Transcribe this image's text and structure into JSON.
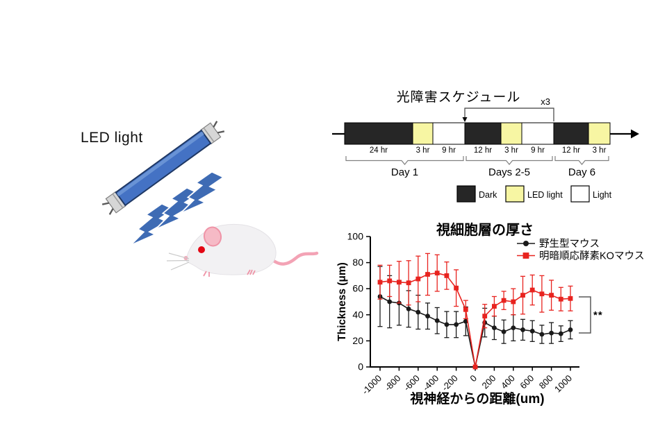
{
  "illustration": {
    "label": "LED light",
    "tube_color": "#4472c4",
    "tube_highlight": "#7099d8",
    "bolt_color": "#3e6bb4",
    "mouse_body": "#f2f1f3",
    "mouse_ear": "#f6bac6",
    "mouse_eye": "#e30613",
    "mouse_tail": "#f3a3b5"
  },
  "schedule": {
    "title": "光障害スケジュール",
    "repeat_label": "x3",
    "repeat_span": [
      3,
      6
    ],
    "colors": {
      "dark": "#262626",
      "led": "#f7f6a3",
      "light": "#ffffff"
    },
    "segments": [
      {
        "duration": "24 hr",
        "type": "dark",
        "width": 98
      },
      {
        "duration": "3 hr",
        "type": "led",
        "width": 29
      },
      {
        "duration": "9 hr",
        "type": "light",
        "width": 46
      },
      {
        "duration": "12 hr",
        "type": "dark",
        "width": 52
      },
      {
        "duration": "3 hr",
        "type": "led",
        "width": 30
      },
      {
        "duration": "9 hr",
        "type": "light",
        "width": 46
      },
      {
        "duration": "12 hr",
        "type": "dark",
        "width": 50
      },
      {
        "duration": "3 hr",
        "type": "led",
        "width": 31
      }
    ],
    "day_groups": [
      {
        "label": "Day 1",
        "from": 0,
        "to": 3
      },
      {
        "label": "Days 2-5",
        "from": 3,
        "to": 6
      },
      {
        "label": "Day 6",
        "from": 6,
        "to": 8
      }
    ],
    "legend": [
      {
        "label": "Dark",
        "color": "#262626"
      },
      {
        "label": "LED light",
        "color": "#f7f6a3"
      },
      {
        "label": "Light",
        "color": "#ffffff"
      }
    ]
  },
  "chart_data": {
    "type": "line",
    "title": "視細胞層の厚さ",
    "xlabel": "視神経からの距離(um)",
    "ylabel": "Thickness (μm)",
    "xlim": [
      -1100,
      1100
    ],
    "ylim": [
      0,
      100
    ],
    "yticks": [
      0,
      20,
      40,
      60,
      80,
      100
    ],
    "xticks": [
      -1000,
      -800,
      -600,
      -400,
      -200,
      0,
      200,
      400,
      600,
      800,
      1000
    ],
    "grid": false,
    "legend_position": "top-right",
    "significance_label": "**",
    "x": [
      -1000,
      -900,
      -800,
      -700,
      -600,
      -500,
      -400,
      -300,
      -200,
      -100,
      0,
      100,
      200,
      300,
      400,
      500,
      600,
      700,
      800,
      900,
      1000
    ],
    "series": [
      {
        "name": "野生型マウス",
        "color": "#1a1a1a",
        "marker": "circle",
        "values": [
          54,
          50,
          49,
          44.5,
          42,
          39,
          35.5,
          32.5,
          32.5,
          35,
          0,
          34,
          30,
          27,
          30,
          28.5,
          27.5,
          25,
          26,
          25.5,
          28.5
        ],
        "errors": [
          23,
          20,
          17,
          14,
          13,
          10,
          10,
          10,
          10,
          11,
          0,
          11,
          9,
          9,
          10,
          8,
          8,
          7,
          8,
          6,
          7
        ]
      },
      {
        "name": "明暗順応酵素KOマウス",
        "color": "#e8231f",
        "marker": "square",
        "values": [
          65,
          66,
          65,
          64.5,
          67.5,
          71,
          72,
          70,
          60.5,
          44,
          0,
          39,
          46.5,
          51,
          50,
          55,
          59,
          56,
          55,
          52,
          52.5
        ],
        "errors": [
          13,
          12,
          16,
          17,
          17.5,
          16,
          14,
          10.5,
          14,
          7,
          0,
          9,
          7.5,
          7,
          10,
          14.5,
          11.5,
          14,
          11.5,
          9,
          9.5
        ]
      }
    ]
  }
}
